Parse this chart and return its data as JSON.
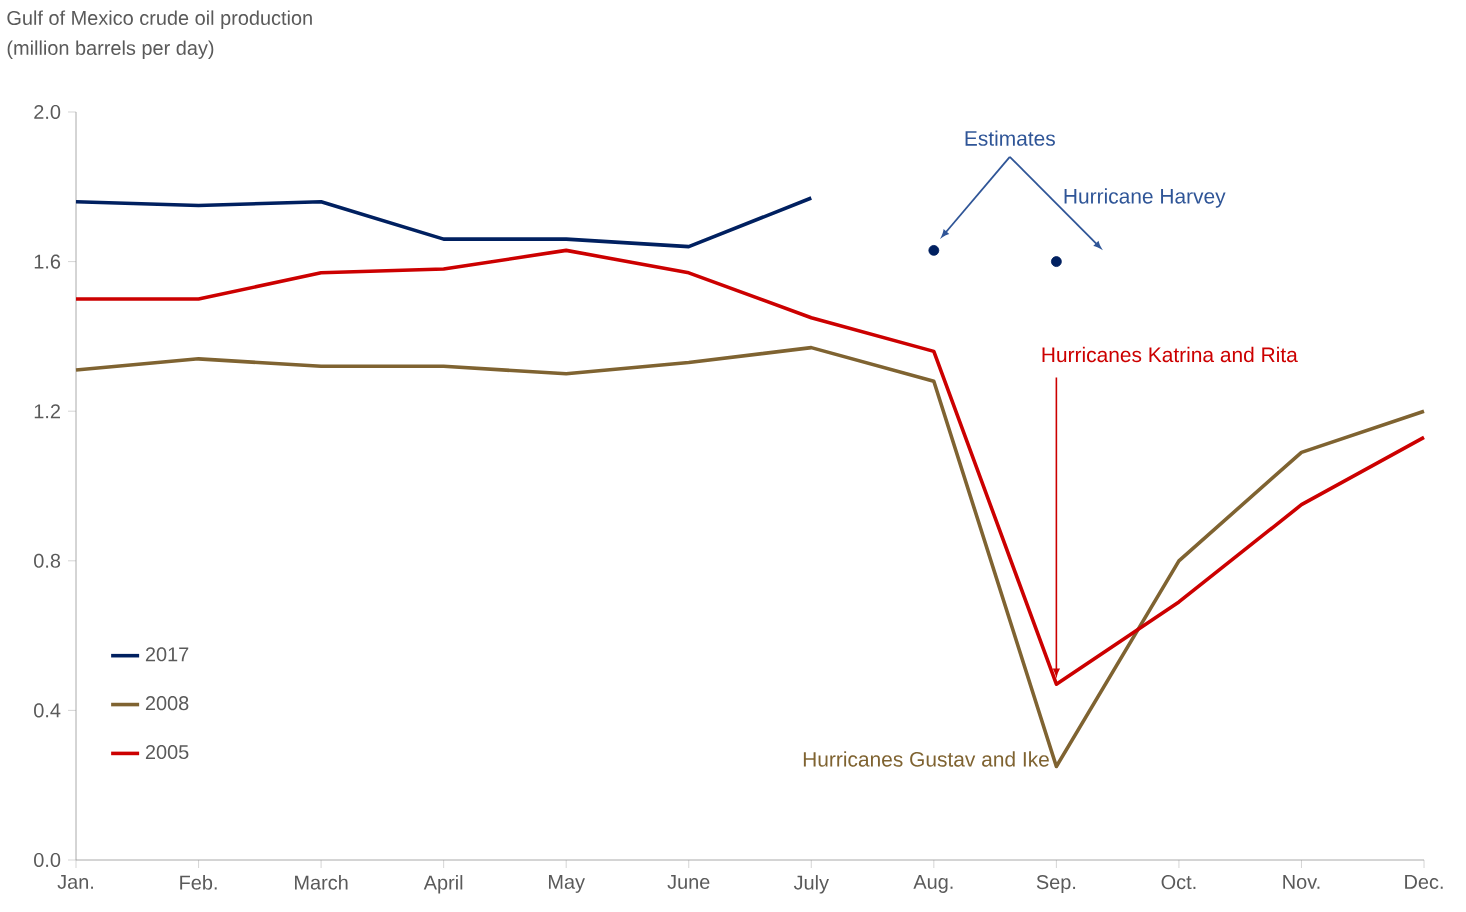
{
  "chart_data": {
    "type": "line",
    "title": "Gulf of Mexico crude oil production",
    "subtitle": "(million barrels per day)",
    "categories": [
      "Jan.",
      "Feb.",
      "March",
      "April",
      "May",
      "June",
      "July",
      "Aug.",
      "Sep.",
      "Oct.",
      "Nov.",
      "Dec."
    ],
    "series": [
      {
        "name": "2017",
        "color": "#002060",
        "values": [
          1.76,
          1.75,
          1.76,
          1.66,
          1.66,
          1.64,
          1.77,
          null,
          null,
          null,
          null,
          null
        ]
      },
      {
        "name": "2008",
        "color": "#7f6331",
        "values": [
          1.31,
          1.34,
          1.32,
          1.32,
          1.3,
          1.33,
          1.37,
          1.28,
          0.25,
          0.8,
          1.09,
          1.2
        ]
      },
      {
        "name": "2005",
        "color": "#cc0000",
        "values": [
          1.5,
          1.5,
          1.57,
          1.58,
          1.63,
          1.57,
          1.45,
          1.36,
          0.47,
          0.69,
          0.95,
          1.13
        ]
      },
      {
        "type": "scatter",
        "color": "#002060",
        "marker": "circle",
        "x": [
          "Aug.",
          "Sep."
        ],
        "values": [
          1.63,
          1.6
        ]
      }
    ],
    "ylim": [
      0,
      2
    ],
    "yticks": [
      {
        "value": 0,
        "label": "0.0"
      },
      0.4,
      0.8,
      1.2,
      1.6,
      {
        "value": 2,
        "label": "2.0"
      }
    ],
    "legend": "bottom left",
    "marker": "none",
    "line_style": "solid",
    "annotations": [
      "Estimates",
      "Hurricane Harvey",
      {
        "text": "Hurricanes Katrina and Rita",
        "x": "Sep.",
        "y": 0.47
      },
      {
        "text": "Hurricanes Gustav and Ike",
        "x": "Sep.",
        "y": 0.25
      }
    ]
  }
}
